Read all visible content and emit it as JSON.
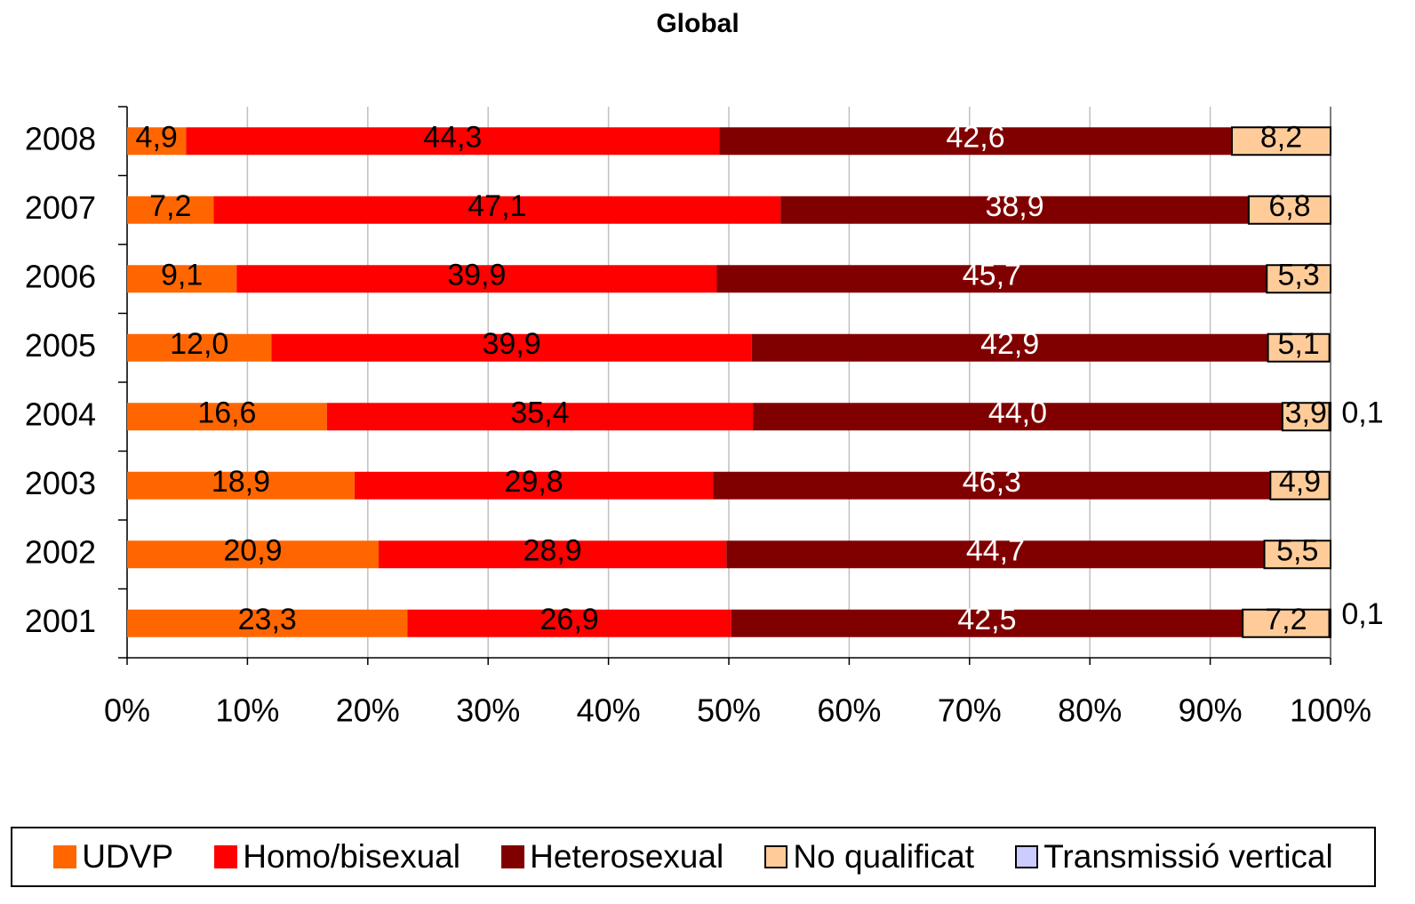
{
  "chart_data": {
    "type": "stacked_barh",
    "title": "Global",
    "categories": [
      "2008",
      "2007",
      "2006",
      "2005",
      "2004",
      "2003",
      "2002",
      "2001"
    ],
    "series": [
      {
        "name": "UDVP",
        "color": "#ff6600",
        "label_color": "#000000",
        "values": [
          4.9,
          7.2,
          9.1,
          12.0,
          16.6,
          18.9,
          20.9,
          23.3
        ],
        "value_labels": [
          "4,9",
          "7,2",
          "9,1",
          "12,0",
          "16,6",
          "18,9",
          "20,9",
          "23,3"
        ]
      },
      {
        "name": "Homo/bisexual",
        "color": "#ff0000",
        "label_color": "#000000",
        "values": [
          44.3,
          47.1,
          39.9,
          39.9,
          35.4,
          29.8,
          28.9,
          26.9
        ],
        "value_labels": [
          "44,3",
          "47,1",
          "39,9",
          "39,9",
          "35,4",
          "29,8",
          "28,9",
          "26,9"
        ]
      },
      {
        "name": "Heterosexual",
        "color": "#800000",
        "label_color": "#ffffff",
        "values": [
          42.6,
          38.9,
          45.7,
          42.9,
          44.0,
          46.3,
          44.7,
          42.5
        ],
        "value_labels": [
          "42,6",
          "38,9",
          "45,7",
          "42,9",
          "44,0",
          "46,3",
          "44,7",
          "42,5"
        ]
      },
      {
        "name": "No qualificat",
        "color": "#ffcc99",
        "label_color": "#000000",
        "values": [
          8.2,
          6.8,
          5.3,
          5.1,
          3.9,
          4.9,
          5.5,
          7.2
        ],
        "value_labels": [
          "8,2",
          "6,8",
          "5,3",
          "5,1",
          "3,9",
          "4,9",
          "5,5",
          "7,2"
        ]
      },
      {
        "name": "Transmissió vertical",
        "color": "#ccccff",
        "label_color": "#000000",
        "values": [
          0,
          0,
          0,
          0,
          0.1,
          0,
          0,
          0.1
        ],
        "value_labels": [
          null,
          null,
          null,
          null,
          "0,1",
          null,
          null,
          "0,1"
        ]
      }
    ],
    "xlim": [
      0,
      100
    ],
    "xticks": [
      {
        "value": 0,
        "label": "0%"
      },
      {
        "value": 10,
        "label": "10%"
      },
      {
        "value": 20,
        "label": "20%"
      },
      {
        "value": 30,
        "label": "30%"
      },
      {
        "value": 40,
        "label": "40%"
      },
      {
        "value": 50,
        "label": "50%"
      },
      {
        "value": 60,
        "label": "60%"
      },
      {
        "value": 70,
        "label": "70%"
      },
      {
        "value": 80,
        "label": "80%"
      },
      {
        "value": 90,
        "label": "90%"
      },
      {
        "value": 100,
        "label": "100%"
      }
    ],
    "grid": true,
    "legend": "bottom"
  }
}
